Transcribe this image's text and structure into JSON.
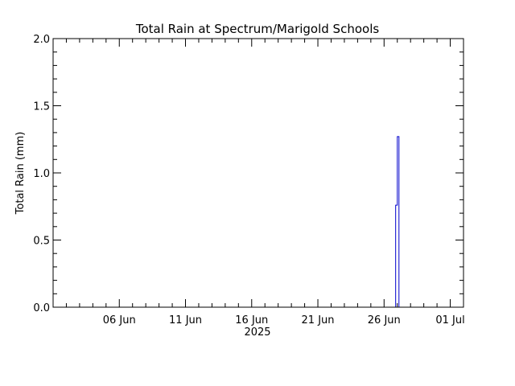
{
  "chart_data": {
    "type": "bar",
    "title": "Total Rain at Spectrum/Marigold Schools",
    "ylabel": "Total Rain (mm)",
    "xlabel": "2025",
    "ylim": [
      0,
      2.0
    ],
    "xlim": [
      "2025-06-01",
      "2025-07-02"
    ],
    "grid": false,
    "x_ticks": [
      {
        "date": "2025-06-06",
        "label": "06 Jun"
      },
      {
        "date": "2025-06-11",
        "label": "11 Jun"
      },
      {
        "date": "2025-06-16",
        "label": "16 Jun"
      },
      {
        "date": "2025-06-21",
        "label": "21 Jun"
      },
      {
        "date": "2025-06-26",
        "label": "26 Jun"
      },
      {
        "date": "2025-07-01",
        "label": "01 Jul"
      }
    ],
    "y_ticks": [
      {
        "value": 0.0,
        "label": "0.0"
      },
      {
        "value": 0.5,
        "label": "0.5"
      },
      {
        "value": 1.0,
        "label": "1.0"
      },
      {
        "value": 1.5,
        "label": "1.5"
      },
      {
        "value": 2.0,
        "label": "2.0"
      }
    ],
    "series": [
      {
        "color": "#0000cc",
        "x": [
          "2025-06-26T18:00",
          "2025-06-26T21:00",
          "2025-06-27T00:00",
          "2025-06-27T03:00"
        ],
        "values": [
          0.0,
          0.76,
          1.27,
          0.0
        ]
      }
    ]
  }
}
